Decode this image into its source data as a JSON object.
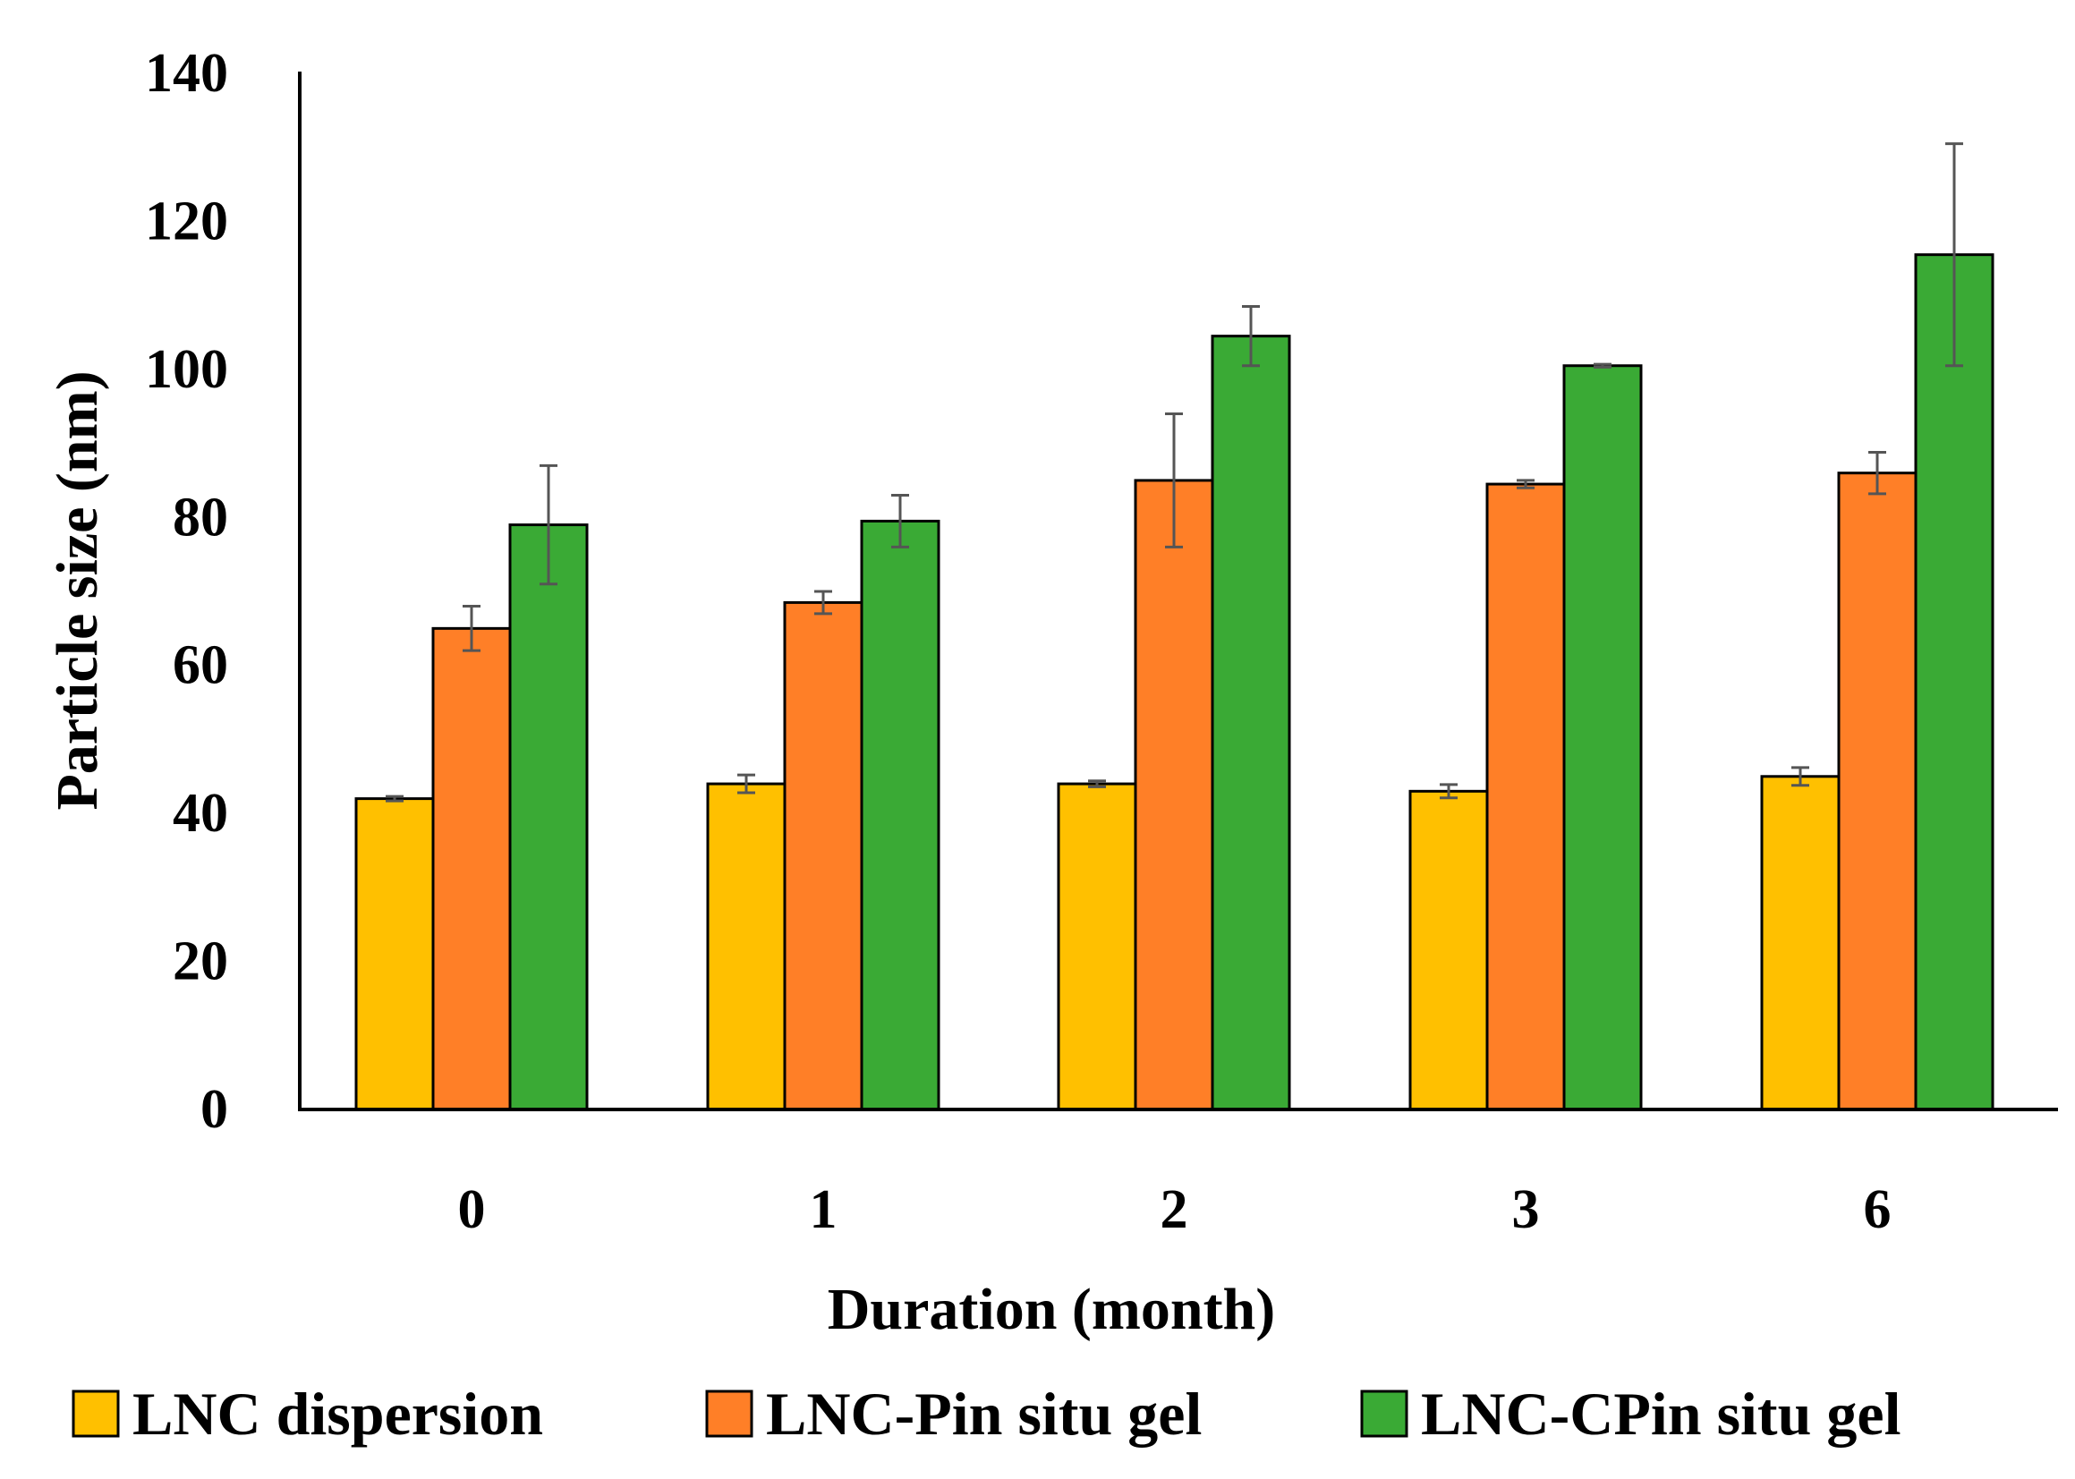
{
  "chart_data": {
    "type": "bar",
    "title": "",
    "xlabel": "Duration (month)",
    "ylabel": "Particle size (nm)",
    "ylim": [
      0,
      140
    ],
    "yticks": [
      0,
      20,
      40,
      60,
      80,
      100,
      120,
      140
    ],
    "categories": [
      "0",
      "1",
      "2",
      "3",
      "6"
    ],
    "grid": false,
    "legend_position": "bottom",
    "series": [
      {
        "name": "LNC dispersion",
        "color": "#FFC000",
        "values": [
          42,
          44,
          44,
          43,
          45
        ],
        "errors": [
          0.3,
          1.2,
          0.4,
          0.9,
          1.2
        ]
      },
      {
        "name": "LNC-Pin situ gel",
        "color": "#FF7F27",
        "values": [
          65,
          68.5,
          85,
          84.5,
          86
        ],
        "errors": [
          3,
          1.5,
          9,
          0.5,
          2.8
        ]
      },
      {
        "name": "LNC-CPin situ gel",
        "color": "#3AAA35",
        "values": [
          79,
          79.5,
          104.5,
          100.5,
          115.5
        ],
        "errors": [
          8,
          3.5,
          4,
          0.2,
          15
        ]
      }
    ]
  }
}
